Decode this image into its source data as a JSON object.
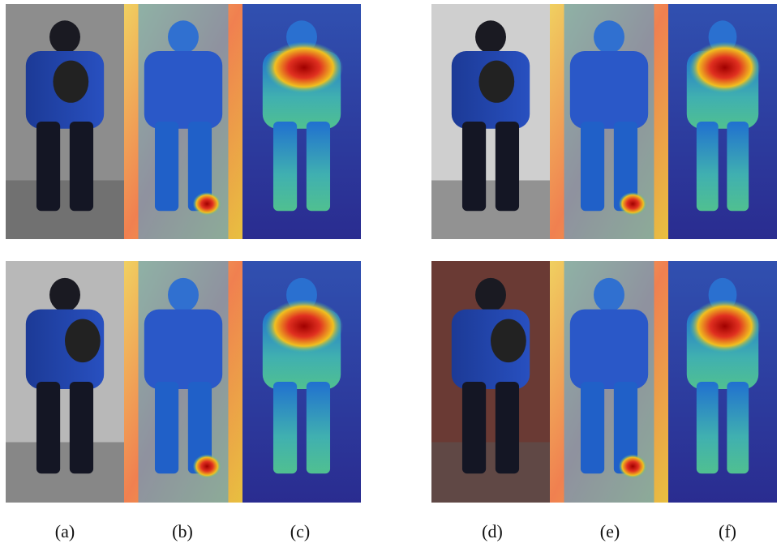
{
  "captions": [
    "(a)",
    "(b)",
    "(c)",
    "(d)",
    "(e)",
    "(f)"
  ]
}
